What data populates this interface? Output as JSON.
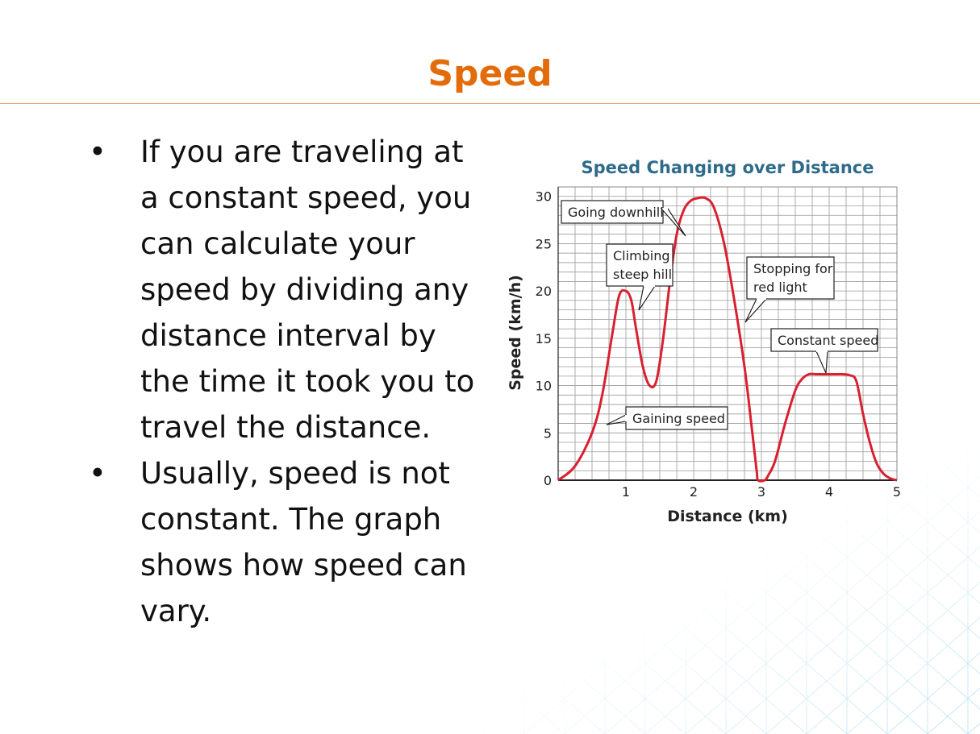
{
  "slide": {
    "title": "Speed",
    "accent_color": "#E36C0A",
    "bullets": [
      "If you are traveling at a constant speed, you can calculate your speed by dividing any distance interval by the time it took you to travel the distance.",
      "Usually, speed is not constant. The graph shows how speed can vary."
    ]
  },
  "chart_data": {
    "type": "line",
    "title": "Speed Changing over Distance",
    "xlabel": "Distance (km)",
    "ylabel": "Speed (km/h)",
    "xlim": [
      0,
      5
    ],
    "ylim": [
      0,
      31
    ],
    "xticks": [
      1,
      2,
      3,
      4,
      5
    ],
    "yticks": [
      0,
      5,
      10,
      15,
      20,
      25,
      30
    ],
    "grid": true,
    "line_color": "#D92030",
    "title_color": "#2E6B8A",
    "series": [
      {
        "x": [
          0,
          0.25,
          0.5,
          0.65,
          0.8,
          0.9,
          1.0,
          1.08,
          1.15,
          1.25,
          1.35,
          1.45,
          1.55,
          1.65,
          1.75,
          1.85,
          1.95,
          2.05,
          2.18,
          2.3,
          2.45,
          2.6,
          2.75,
          2.85,
          2.93,
          2.95,
          3.05,
          3.1,
          3.2,
          3.35,
          3.5,
          3.6,
          3.7,
          3.8,
          3.9,
          4.0,
          4.1,
          4.2,
          4.3,
          4.4,
          4.5,
          4.6,
          4.7,
          4.8,
          4.9,
          5.0
        ],
        "y": [
          0,
          1.5,
          5,
          9,
          15.5,
          19.5,
          20,
          19,
          16,
          12,
          10,
          10.5,
          15,
          21,
          26,
          28.5,
          29.5,
          29.8,
          29.8,
          28.8,
          25,
          19,
          12,
          6,
          1,
          0,
          0,
          0.5,
          2,
          6,
          9.5,
          10.7,
          11.2,
          11.2,
          11.2,
          11.2,
          11.2,
          11.2,
          11.1,
          10.5,
          7,
          4,
          1.8,
          0.7,
          0.2,
          0
        ]
      }
    ],
    "annotations": [
      {
        "lines": [
          "Going downhill"
        ]
      },
      {
        "lines": [
          "Climbing",
          "steep hill"
        ]
      },
      {
        "lines": [
          "Stopping for",
          "red light"
        ]
      },
      {
        "lines": [
          "Constant speed"
        ]
      },
      {
        "lines": [
          "Gaining speed"
        ]
      }
    ]
  }
}
